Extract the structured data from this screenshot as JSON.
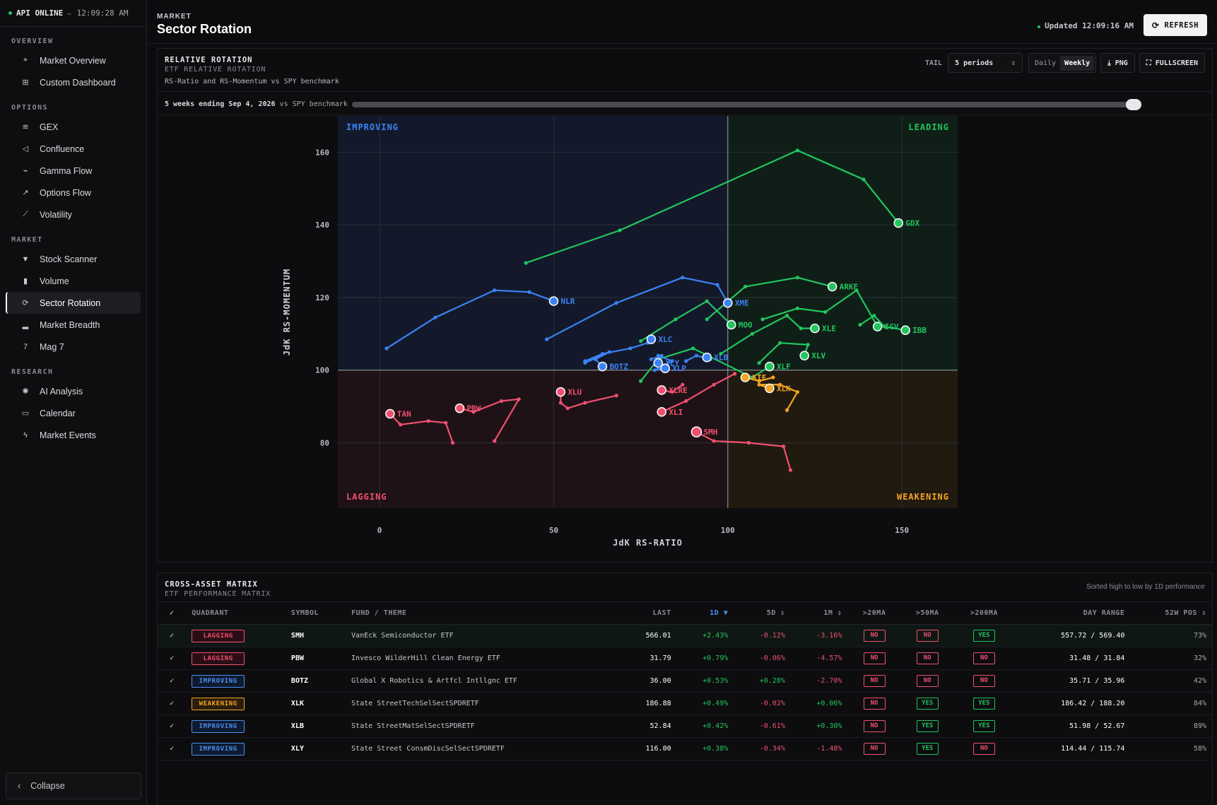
{
  "sidebar": {
    "status": "API ONLINE",
    "clock": "12:09:28 AM",
    "sections": [
      {
        "title": "OVERVIEW",
        "items": [
          {
            "label": "Market Overview",
            "icon": "crosshair-icon"
          },
          {
            "label": "Custom Dashboard",
            "icon": "grid-icon"
          }
        ]
      },
      {
        "title": "OPTIONS",
        "items": [
          {
            "label": "GEX",
            "icon": "layers-icon"
          },
          {
            "label": "Confluence",
            "icon": "send-icon"
          },
          {
            "label": "Gamma Flow",
            "icon": "pulse-icon"
          },
          {
            "label": "Options Flow",
            "icon": "trend-up-icon"
          },
          {
            "label": "Volatility",
            "icon": "line-chart-icon"
          }
        ]
      },
      {
        "title": "MARKET",
        "items": [
          {
            "label": "Stock Scanner",
            "icon": "filter-icon"
          },
          {
            "label": "Volume",
            "icon": "bar-chart-icon"
          },
          {
            "label": "Sector Rotation",
            "icon": "refresh-icon"
          },
          {
            "label": "Market Breadth",
            "icon": "signal-icon"
          },
          {
            "label": "Mag 7",
            "icon": "seven-icon"
          }
        ]
      },
      {
        "title": "RESEARCH",
        "items": [
          {
            "label": "AI Analysis",
            "icon": "sparkle-icon"
          },
          {
            "label": "Calendar",
            "icon": "calendar-icon"
          },
          {
            "label": "Market Events",
            "icon": "bolt-icon"
          }
        ]
      }
    ],
    "collapse_label": "Collapse"
  },
  "header": {
    "crumb": "MARKET",
    "title": "Sector Rotation",
    "updated": "Updated 12:09:16 AM",
    "refresh_label": "REFRESH"
  },
  "rotation": {
    "title": "RELATIVE ROTATION",
    "subtitle": "ETF RELATIVE ROTATION",
    "desc": "RS-Ratio and RS-Momentum vs SPY benchmark",
    "tail_label": "TAIL",
    "tail_value": "5 periods",
    "periods": [
      "Daily",
      "Weekly"
    ],
    "active_period": "Weekly",
    "png_label": "PNG",
    "fullscreen_label": "FULLSCREEN",
    "slider_label_bold": "5 weeks ending Sep 4, 2026",
    "slider_label_rest": " vs SPY benchmark",
    "slider_position": 1.0
  },
  "chart_data": {
    "type": "scatter",
    "xlabel": "JdK RS-RATIO",
    "ylabel": "JdK RS-MOMENTUM",
    "xlim": [
      -12,
      166
    ],
    "ylim": [
      62,
      170
    ],
    "xticks": [
      0,
      50,
      100,
      150
    ],
    "yticks": [
      80,
      100,
      120,
      140,
      160
    ],
    "center": [
      100,
      100
    ],
    "quadrants": {
      "improving": "IMPROVING",
      "leading": "LEADING",
      "lagging": "LAGGING",
      "weakening": "WEAKENING"
    },
    "colors": {
      "improving": "#3b82f6",
      "leading": "#22c55e",
      "lagging": "#f0506e",
      "weakening": "#f5a524"
    },
    "series": [
      {
        "name": "GDX",
        "q": "leading",
        "points": [
          [
            42,
            129.5
          ],
          [
            69,
            138.5
          ],
          [
            120,
            160.5
          ],
          [
            139,
            152.5
          ],
          [
            149,
            140.5
          ]
        ]
      },
      {
        "name": "ARKF",
        "q": "leading",
        "points": [
          [
            94,
            114
          ],
          [
            105,
            123
          ],
          [
            120,
            125.5
          ],
          [
            130,
            123
          ]
        ]
      },
      {
        "name": "IGV",
        "q": "leading",
        "points": [
          [
            110,
            114
          ],
          [
            120,
            117
          ],
          [
            128,
            116
          ],
          [
            137,
            122
          ],
          [
            143,
            112
          ]
        ]
      },
      {
        "name": "IBB",
        "q": "leading",
        "points": [
          [
            138,
            112.5
          ],
          [
            142,
            115
          ],
          [
            145,
            112
          ],
          [
            151,
            111
          ]
        ]
      },
      {
        "name": "XLE",
        "q": "leading",
        "points": [
          [
            98,
            104.5
          ],
          [
            107,
            110
          ],
          [
            117,
            115
          ],
          [
            121,
            111.5
          ],
          [
            125,
            111.5
          ]
        ]
      },
      {
        "name": "MOO",
        "q": "leading",
        "points": [
          [
            75,
            108
          ],
          [
            85,
            114
          ],
          [
            94,
            119
          ],
          [
            101,
            112.5
          ]
        ]
      },
      {
        "name": "XLV",
        "q": "leading",
        "points": [
          [
            109,
            102
          ],
          [
            115,
            107.5
          ],
          [
            123,
            107
          ],
          [
            122,
            104
          ]
        ]
      },
      {
        "name": "XLF",
        "q": "leading",
        "points": [
          [
            75,
            97
          ],
          [
            80,
            103
          ],
          [
            90,
            106
          ],
          [
            107,
            98
          ],
          [
            112,
            101
          ]
        ]
      },
      {
        "name": "NLR",
        "q": "improving",
        "points": [
          [
            2,
            106
          ],
          [
            16,
            114.5
          ],
          [
            33,
            122
          ],
          [
            43,
            121.5
          ],
          [
            50,
            119
          ]
        ]
      },
      {
        "name": "XME",
        "q": "improving",
        "points": [
          [
            48,
            108.5
          ],
          [
            68,
            118.5
          ],
          [
            87,
            125.5
          ],
          [
            97,
            123.5
          ],
          [
            100,
            118.5
          ]
        ]
      },
      {
        "name": "XLC",
        "q": "improving",
        "points": [
          [
            59,
            102.5
          ],
          [
            64,
            104.5
          ],
          [
            72,
            106
          ],
          [
            77,
            107.5
          ],
          [
            78,
            108.5
          ]
        ]
      },
      {
        "name": "BOTZ",
        "q": "improving",
        "points": [
          [
            59,
            102
          ],
          [
            66,
            105
          ],
          [
            62,
            103
          ],
          [
            64,
            101
          ]
        ]
      },
      {
        "name": "XLY",
        "q": "improving",
        "points": [
          [
            78,
            103
          ],
          [
            81,
            104
          ],
          [
            79,
            101.5
          ],
          [
            80,
            102
          ]
        ]
      },
      {
        "name": "XLP",
        "q": "improving",
        "points": [
          [
            80,
            104
          ],
          [
            84,
            102.5
          ],
          [
            79,
            100
          ],
          [
            82,
            100.5
          ]
        ]
      },
      {
        "name": "XLB",
        "q": "improving",
        "points": [
          [
            88,
            102.5
          ],
          [
            91,
            104
          ],
          [
            95,
            103
          ],
          [
            94,
            103.5
          ]
        ]
      },
      {
        "name": "XLRE",
        "q": "lagging",
        "points": [
          [
            87,
            96
          ],
          [
            84,
            94
          ],
          [
            81,
            94.5
          ]
        ]
      },
      {
        "name": "XLI",
        "q": "lagging",
        "points": [
          [
            102,
            99
          ],
          [
            96,
            96
          ],
          [
            88,
            91.5
          ],
          [
            81,
            88.5
          ]
        ]
      },
      {
        "name": "XLU",
        "q": "lagging",
        "points": [
          [
            68,
            93
          ],
          [
            59,
            91
          ],
          [
            54,
            89.5
          ],
          [
            52,
            91
          ],
          [
            52,
            94
          ]
        ]
      },
      {
        "name": "PBW",
        "q": "lagging",
        "points": [
          [
            33,
            80.5
          ],
          [
            40,
            92
          ],
          [
            35,
            91.5
          ],
          [
            27,
            88.5
          ],
          [
            23,
            89.5
          ]
        ]
      },
      {
        "name": "TAN",
        "q": "lagging",
        "points": [
          [
            21,
            80
          ],
          [
            19,
            85.5
          ],
          [
            14,
            86
          ],
          [
            6,
            85
          ],
          [
            3,
            88
          ]
        ]
      },
      {
        "name": "SMH",
        "q": "lagging",
        "points": [
          [
            118,
            72.5
          ],
          [
            116,
            79
          ],
          [
            106,
            80
          ],
          [
            96,
            80.5
          ],
          [
            91,
            83
          ]
        ]
      },
      {
        "name": "KIE",
        "q": "weakening",
        "points": [
          [
            113,
            98
          ],
          [
            109,
            97
          ],
          [
            105,
            98
          ]
        ]
      },
      {
        "name": "XLK",
        "q": "weakening",
        "points": [
          [
            117,
            89
          ],
          [
            120,
            94
          ],
          [
            115,
            96
          ],
          [
            109,
            96
          ],
          [
            112,
            95
          ]
        ]
      }
    ]
  },
  "matrix": {
    "title": "CROSS-ASSET MATRIX",
    "subtitle": "ETF PERFORMANCE MATRIX",
    "sorted_note": "Sorted high to low by 1D performance",
    "columns": [
      "✓",
      "QUADRANT",
      "SYMBOL",
      "FUND / THEME",
      "LAST",
      "1D ▼",
      "5D ⇕",
      "1M ⇕",
      ">20MA",
      ">50MA",
      ">200MA",
      "DAY RANGE",
      "52W POS ⇕"
    ],
    "rows": [
      {
        "q": "LAGGING",
        "sym": "SMH",
        "fund": "VanEck Semiconductor ETF",
        "last": "566.01",
        "d1": "+2.43%",
        "d5": "-0.12%",
        "m1": "-3.16%",
        "ma20": "NO",
        "ma50": "NO",
        "ma200": "YES",
        "range": "557.72 / 569.40",
        "pos": "73%"
      },
      {
        "q": "LAGGING",
        "sym": "PBW",
        "fund": "Invesco WilderHill Clean Energy ETF",
        "last": "31.79",
        "d1": "+0.79%",
        "d5": "-0.06%",
        "m1": "-4.57%",
        "ma20": "NO",
        "ma50": "NO",
        "ma200": "NO",
        "range": "31.48 / 31.84",
        "pos": "32%"
      },
      {
        "q": "IMPROVING",
        "sym": "BOTZ",
        "fund": "Global X Robotics & Artfcl Intllgnc ETF",
        "last": "36.00",
        "d1": "+0.53%",
        "d5": "+0.28%",
        "m1": "-2.70%",
        "ma20": "NO",
        "ma50": "NO",
        "ma200": "NO",
        "range": "35.71 / 35.96",
        "pos": "42%"
      },
      {
        "q": "WEAKENING",
        "sym": "XLK",
        "fund": "State StreetTechSelSectSPDRETF",
        "last": "186.88",
        "d1": "+0.49%",
        "d5": "-0.02%",
        "m1": "+0.06%",
        "ma20": "NO",
        "ma50": "YES",
        "ma200": "YES",
        "range": "186.42 / 188.20",
        "pos": "84%"
      },
      {
        "q": "IMPROVING",
        "sym": "XLB",
        "fund": "State StreetMatSelSectSPDRETF",
        "last": "52.84",
        "d1": "+0.42%",
        "d5": "-0.61%",
        "m1": "+0.30%",
        "ma20": "NO",
        "ma50": "YES",
        "ma200": "YES",
        "range": "51.98 / 52.67",
        "pos": "89%"
      },
      {
        "q": "IMPROVING",
        "sym": "XLY",
        "fund": "State Street ConsmDiscSelSectSPDRETF",
        "last": "116.00",
        "d1": "+0.38%",
        "d5": "-0.34%",
        "m1": "-1.48%",
        "ma20": "NO",
        "ma50": "YES",
        "ma200": "NO",
        "range": "114.44 / 115.74",
        "pos": "58%"
      }
    ]
  }
}
